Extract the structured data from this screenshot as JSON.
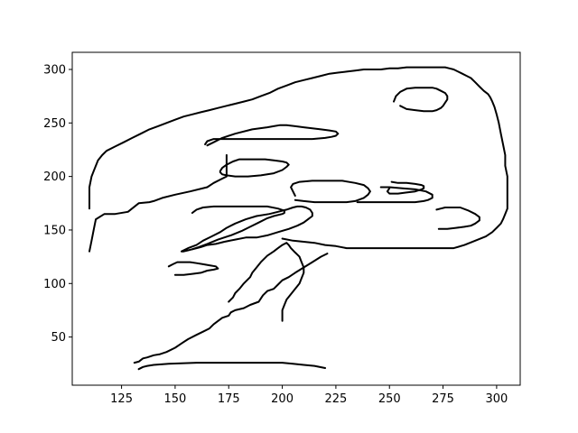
{
  "chart_data": {
    "type": "line",
    "title": "",
    "xlabel": "",
    "ylabel": "",
    "xlim": [
      102,
      311
    ],
    "ylim": [
      5,
      316
    ],
    "xticks": [
      125,
      150,
      175,
      200,
      225,
      250,
      275,
      300
    ],
    "yticks": [
      50,
      100,
      150,
      200,
      250,
      300
    ],
    "grid": false,
    "legend": "none",
    "line_color": "#000000",
    "series": [
      {
        "x": [
          133,
          135,
          137,
          140,
          147,
          160,
          175,
          190,
          200,
          205,
          210,
          215,
          220
        ],
        "y": [
          20,
          22,
          23,
          24,
          25,
          26,
          26,
          26,
          26,
          25,
          24,
          23,
          21
        ]
      },
      {
        "x": [
          131,
          133,
          135,
          137,
          140,
          143,
          146,
          150,
          153,
          156,
          160,
          163,
          166,
          168,
          170,
          172,
          175,
          176,
          178,
          182,
          185,
          189,
          190,
          191,
          193,
          196,
          198,
          200,
          203,
          206,
          210,
          214,
          218,
          221
        ],
        "y": [
          26,
          27,
          30,
          31,
          33,
          34,
          36,
          40,
          44,
          48,
          52,
          55,
          58,
          62,
          65,
          68,
          70,
          73,
          75,
          77,
          80,
          83,
          86,
          89,
          93,
          95,
          99,
          103,
          106,
          110,
          115,
          120,
          125,
          128
        ]
      },
      {
        "x": [
          110,
          111,
          112,
          113,
          117,
          122,
          128,
          133,
          138,
          140,
          144,
          150,
          157,
          165,
          168,
          172,
          174,
          174,
          174,
          174,
          174,
          174
        ],
        "y": [
          130,
          140,
          150,
          160,
          165,
          165,
          167,
          175,
          176,
          177,
          180,
          183,
          186,
          190,
          194,
          198,
          200,
          204,
          208,
          212,
          216,
          220
        ]
      },
      {
        "x": [
          175,
          176,
          177,
          178,
          180,
          182,
          185,
          186,
          188,
          190,
          193,
          196,
          198,
          200,
          201,
          202,
          203,
          204,
          206,
          207,
          208,
          209,
          210,
          210,
          209,
          208,
          206,
          204,
          202,
          201,
          200,
          200,
          200
        ],
        "y": [
          83,
          85,
          87,
          91,
          95,
          100,
          106,
          110,
          115,
          120,
          126,
          130,
          133,
          136,
          137,
          138,
          136,
          133,
          129,
          127,
          125,
          120,
          115,
          110,
          105,
          100,
          95,
          90,
          85,
          80,
          75,
          70,
          65
        ]
      },
      {
        "x": [
          200,
          205,
          210,
          215,
          220,
          225,
          230,
          240,
          250,
          260,
          270,
          275,
          280,
          285,
          290,
          295,
          298,
          300,
          302,
          303,
          304,
          305,
          305,
          305,
          305,
          304,
          304,
          303,
          302,
          301,
          300,
          299,
          298,
          297,
          296,
          294,
          292,
          290,
          288,
          286,
          284,
          282,
          280,
          278,
          276,
          273,
          270,
          266,
          262,
          258,
          254,
          250,
          246,
          242,
          238,
          234,
          230,
          226,
          222,
          218,
          214,
          210,
          206,
          202,
          198,
          194,
          190,
          186,
          182,
          178,
          174,
          170,
          166,
          162,
          158,
          154,
          150,
          146,
          142,
          138,
          134,
          130,
          126,
          122,
          118,
          116,
          114,
          112,
          111,
          110,
          110,
          110
        ],
        "y": [
          142,
          140,
          139,
          138,
          136,
          135,
          133,
          133,
          133,
          133,
          133,
          133,
          133,
          136,
          140,
          144,
          148,
          152,
          156,
          160,
          165,
          170,
          180,
          190,
          200,
          210,
          220,
          230,
          240,
          250,
          258,
          265,
          270,
          274,
          277,
          280,
          284,
          288,
          292,
          294,
          296,
          298,
          300,
          301,
          302,
          302,
          302,
          302,
          302,
          302,
          301,
          301,
          300,
          300,
          300,
          299,
          298,
          297,
          296,
          294,
          292,
          290,
          288,
          285,
          282,
          278,
          275,
          272,
          270,
          268,
          266,
          264,
          262,
          260,
          258,
          256,
          253,
          250,
          247,
          244,
          240,
          236,
          232,
          228,
          224,
          220,
          215,
          205,
          200,
          190,
          180,
          170
        ]
      },
      {
        "x": [
          165,
          168,
          172,
          178,
          186,
          193,
          196,
          199,
          202,
          206,
          210,
          214,
          218,
          222,
          225,
          226,
          225,
          223,
          220,
          214,
          206,
          198,
          190,
          184,
          178,
          172,
          168,
          165,
          164
        ],
        "y": [
          229,
          232,
          236,
          240,
          244,
          246,
          247,
          248,
          248,
          247,
          246,
          245,
          244,
          243,
          242,
          240,
          238,
          237,
          236,
          235,
          235,
          235,
          235,
          235,
          235,
          235,
          235,
          233,
          230
        ]
      },
      {
        "x": [
          153,
          156,
          160,
          163,
          167,
          171,
          174,
          178,
          183,
          188,
          194,
          198,
          202,
          205,
          207,
          209,
          211,
          213,
          214,
          214,
          212,
          210,
          207,
          203,
          198,
          193,
          188,
          183,
          178,
          173,
          169,
          165,
          162,
          160,
          158,
          156,
          154,
          153
        ],
        "y": [
          130,
          133,
          136,
          140,
          144,
          148,
          152,
          156,
          160,
          163,
          165,
          167,
          169,
          171,
          172,
          172,
          171,
          169,
          166,
          163,
          160,
          157,
          154,
          151,
          148,
          145,
          143,
          143,
          141,
          139,
          137,
          136,
          134,
          133,
          132,
          131,
          130,
          130
        ]
      },
      {
        "x": [
          206,
          210,
          215,
          220,
          226,
          230,
          234,
          238,
          240,
          241,
          240,
          238,
          234,
          228,
          220,
          214,
          208,
          205,
          204,
          205,
          206
        ],
        "y": [
          178,
          177,
          176,
          176,
          176,
          176,
          177,
          180,
          183,
          186,
          189,
          192,
          194,
          196,
          196,
          196,
          195,
          193,
          190,
          186,
          182
        ]
      },
      {
        "x": [
          255,
          258,
          262,
          266,
          270,
          272,
          274,
          275,
          276,
          277,
          277,
          276,
          274,
          272,
          270,
          266,
          262,
          258,
          255,
          253,
          252
        ],
        "y": [
          266,
          263,
          262,
          261,
          261,
          262,
          264,
          266,
          269,
          272,
          275,
          278,
          280,
          282,
          283,
          283,
          283,
          282,
          279,
          275,
          270
        ]
      },
      {
        "x": [
          158,
          161,
          165,
          170,
          176,
          181,
          185,
          189,
          193,
          196,
          200,
          201,
          201,
          198,
          193,
          188,
          183,
          178,
          173,
          168,
          163,
          160,
          158
        ],
        "y": [
          132,
          134,
          137,
          141,
          145,
          149,
          153,
          157,
          161,
          163,
          165,
          166,
          168,
          170,
          172,
          172,
          172,
          172,
          172,
          172,
          171,
          169,
          166
        ]
      },
      {
        "x": [
          171,
          172,
          174,
          177,
          180,
          184,
          188,
          192,
          196,
          200,
          202,
          203,
          202,
          200,
          196,
          190,
          184,
          178,
          174,
          172,
          171
        ],
        "y": [
          205,
          208,
          211,
          214,
          216,
          216,
          216,
          216,
          215,
          214,
          213,
          211,
          209,
          206,
          203,
          201,
          200,
          200,
          201,
          202,
          204
        ]
      },
      {
        "x": [
          251,
          254,
          258,
          262,
          265,
          266,
          266,
          265,
          262,
          258,
          254,
          250,
          249,
          250
        ],
        "y": [
          195,
          194,
          194,
          193,
          192,
          191,
          189,
          188,
          186,
          185,
          184,
          184,
          186,
          189
        ]
      },
      {
        "x": [
          273,
          277,
          281,
          285,
          288,
          290,
          292,
          292,
          290,
          287,
          283,
          279,
          276,
          274,
          272
        ],
        "y": [
          151,
          151,
          152,
          153,
          154,
          156,
          159,
          162,
          165,
          168,
          171,
          171,
          171,
          170,
          169
        ]
      },
      {
        "x": [
          150,
          154,
          158,
          162,
          165,
          168,
          170,
          169,
          166,
          163,
          160,
          157,
          154,
          151,
          149,
          147
        ],
        "y": [
          108,
          108,
          109,
          110,
          112,
          113,
          114,
          116,
          117,
          118,
          119,
          120,
          120,
          120,
          118,
          116
        ]
      },
      {
        "x": [
          235,
          245,
          255,
          262,
          266,
          268,
          270,
          270,
          267,
          262,
          256,
          250,
          246
        ],
        "y": [
          176,
          176,
          176,
          176,
          177,
          178,
          180,
          183,
          186,
          188,
          189,
          190,
          190
        ]
      }
    ]
  }
}
